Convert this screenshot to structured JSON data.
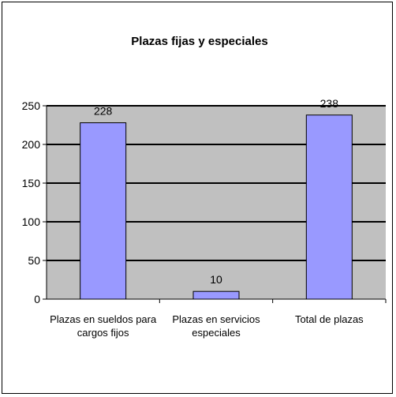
{
  "chart_data": {
    "type": "bar",
    "title": "Plazas fijas y especiales",
    "xlabel": "",
    "ylabel": "",
    "categories": [
      [
        "Plazas en sueldos para",
        "cargos fijos"
      ],
      [
        "Plazas en servicios",
        "especiales"
      ],
      [
        "Total de plazas"
      ]
    ],
    "values": [
      228,
      10,
      238
    ],
    "data_labels": [
      "228",
      "10",
      "238"
    ],
    "ylim": [
      0,
      250
    ],
    "yticks": [
      0,
      50,
      100,
      150,
      200,
      250
    ],
    "grid": true,
    "legend": "none",
    "colors": {
      "bar_fill": "#9999ff",
      "bar_stroke": "#000000",
      "plot_bg": "#c0c0c0",
      "gridline": "#000000"
    }
  }
}
